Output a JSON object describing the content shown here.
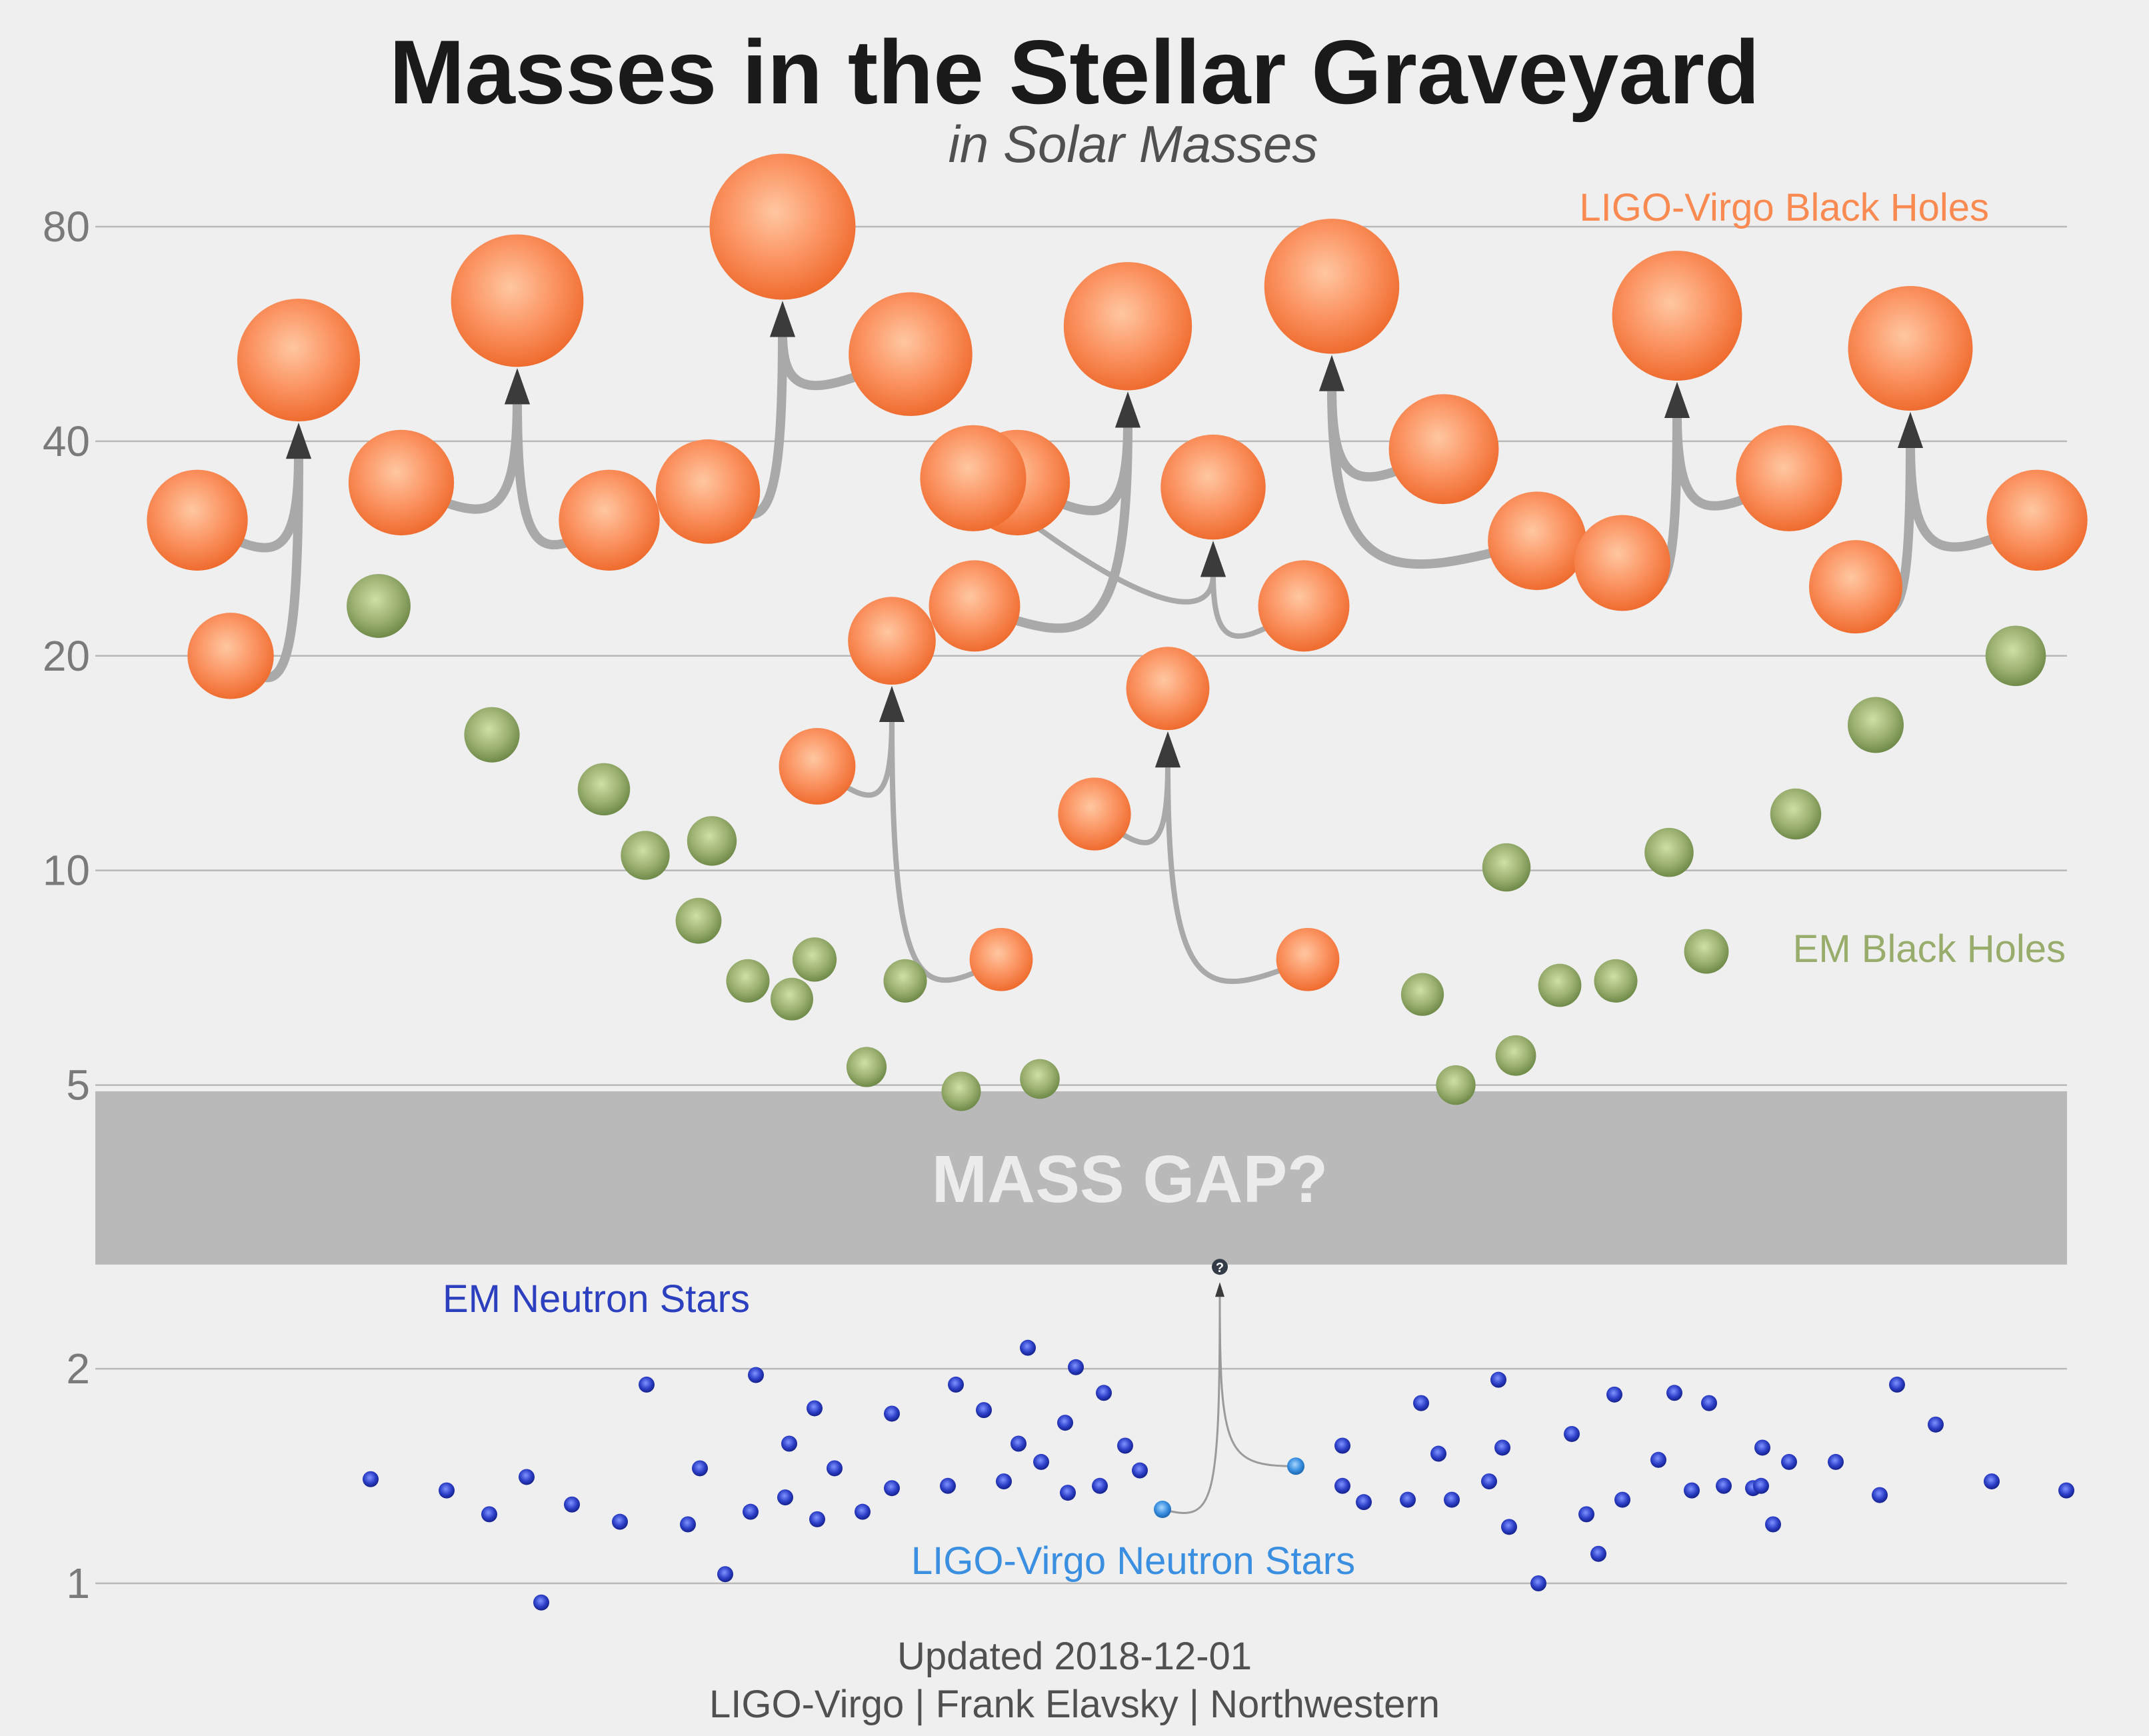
{
  "title": "Masses in the Stellar Graveyard",
  "subtitle": "in Solar Masses",
  "footer": {
    "updated": "Updated 2018-12-01",
    "credits": "LIGO-Virgo | Frank Elavsky | Northwestern"
  },
  "mass_gap_label": "MASS GAP?",
  "question_mark": "?",
  "colors": {
    "background": "#efefef",
    "ligo_bh": "#f98b52",
    "em_bh": "#98ac6c",
    "em_ns": "#2b3fbf",
    "ligo_ns": "#3a8fe0",
    "gap": "#b9b9b9",
    "arrow": "#a9a9a9"
  },
  "chart_data": {
    "type": "scatter",
    "title": "Masses in the Stellar Graveyard",
    "subtitle": "in Solar Masses",
    "y_scale": "log",
    "ylim": [
      0.9,
      90
    ],
    "yticks": [
      1,
      2,
      5,
      10,
      20,
      40,
      80
    ],
    "grid": true,
    "mass_gap": [
      2.8,
      4.9
    ],
    "series": [
      {
        "name": "LIGO-Virgo Black Holes",
        "type": "merger",
        "mergers": [
          {
            "x": 1.0,
            "m1": 31.0,
            "m2": 20.0,
            "final": 52.0
          },
          {
            "x": 2.0,
            "m1": 35.0,
            "m2": 31.0,
            "final": 63.0
          },
          {
            "x": 3.0,
            "m1": 34.0,
            "m2": 53.0,
            "final": 80.0
          },
          {
            "x": 4.0,
            "m1": 35.0,
            "m2": 23.5,
            "final": 58.0
          },
          {
            "x": 4.0,
            "m1": 14.0,
            "m2": 7.5,
            "final": 21.0
          },
          {
            "x": 5.0,
            "m1": 12.0,
            "m2": 7.5,
            "final": 18.0
          },
          {
            "x": 5.0,
            "m1": 35.5,
            "m2": 23.5,
            "final": 34.5
          },
          {
            "x": 6.0,
            "m1": 39.0,
            "m2": 29.0,
            "final": 66.0
          },
          {
            "x": 7.0,
            "m1": 27.0,
            "m2": 35.5,
            "final": 60.0
          },
          {
            "x": 8.0,
            "m1": 25.0,
            "m2": 31.0,
            "final": 54.0
          }
        ]
      },
      {
        "name": "EM Black Holes",
        "type": "points",
        "values": [
          23.5,
          15.5,
          13.0,
          11.0,
          10.5,
          8.5,
          7.0,
          7.5,
          7.0,
          6.6,
          5.3,
          4.9,
          5.1,
          6.7,
          5.0,
          10.1,
          5.5,
          6.9,
          7.0,
          10.6,
          12.0,
          16.0,
          20.0,
          7.7
        ]
      },
      {
        "name": "EM Neutron Stars",
        "type": "points",
        "values": [
          1.4,
          1.35,
          1.25,
          1.41,
          1.29,
          0.94,
          1.22,
          1.9,
          1.21,
          1.45,
          1.03,
          1.96,
          1.26,
          1.32,
          1.57,
          1.76,
          1.23,
          1.45,
          1.26,
          1.73,
          1.36,
          1.37,
          1.9,
          1.75,
          1.39,
          2.14,
          1.57,
          1.48,
          2.01,
          1.34,
          1.68,
          1.85,
          1.37,
          1.56,
          1.44,
          1.56,
          1.37,
          1.3,
          1.79,
          1.52,
          1.31,
          1.31,
          1.93,
          1.55,
          1.2,
          1.39,
          1.0,
          1.62,
          1.25,
          1.1,
          1.84,
          1.31,
          1.49,
          1.85,
          1.35,
          1.79,
          1.37,
          1.36,
          1.55,
          1.21,
          1.37,
          1.48,
          1.48,
          1.9,
          1.33,
          1.67,
          1.39,
          1.35
        ]
      },
      {
        "name": "LIGO-Virgo Neutron Stars",
        "type": "merger",
        "mergers": [
          {
            "x": 4.5,
            "m1": 1.27,
            "m2": 1.46,
            "final": 2.75
          }
        ]
      }
    ]
  }
}
